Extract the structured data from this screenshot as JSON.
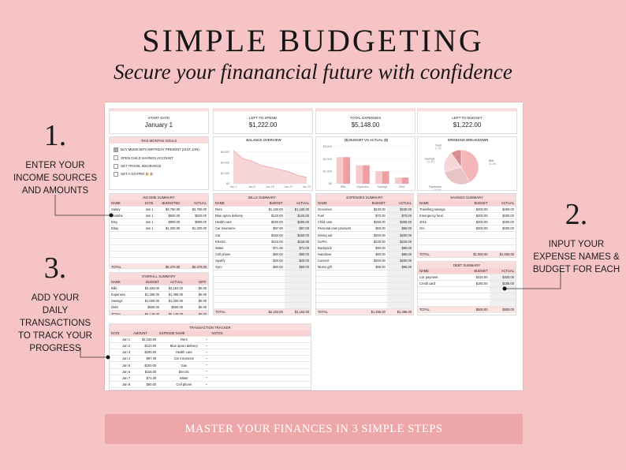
{
  "header": {
    "title": "SIMPLE BUDGETING",
    "subtitle": "Secure your finanancial future with confidence"
  },
  "steps": [
    {
      "number": "1.",
      "lines": [
        "ENTER YOUR",
        "INCOME SOURCES",
        "AND AMOUNTS"
      ]
    },
    {
      "number": "2.",
      "lines": [
        "INPUT YOUR",
        "EXPENSE NAMES &",
        "BUDGET FOR EACH"
      ]
    },
    {
      "number": "3.",
      "lines": [
        "ADD YOUR",
        "DAILY",
        "TRANSACTIONS",
        "TO TRACK YOUR",
        "PROGRESS"
      ]
    }
  ],
  "footer": "MASTER YOUR FINANCES IN 3 SIMPLE STEPS",
  "spreadsheet": {
    "cards": [
      {
        "label": "START DATE",
        "value": "January 1"
      },
      {
        "label": "LEFT TO SPEND",
        "value": "$1,222.00"
      },
      {
        "label": "TOTAL EXPENSES",
        "value": "$5,148.00"
      },
      {
        "label": "LEFT TO BUDGET",
        "value": "$1,222.00"
      }
    ],
    "goals": {
      "title": "THIS MONTHS GOALS",
      "items": [
        {
          "text": "BUY MUMS 60TH BIRTHDAY PRESENT (21ST JAN)",
          "checked": true
        },
        {
          "text": "OPEN CHILD SAVINGS ACCOUNT",
          "checked": false
        },
        {
          "text": "GET TRAVEL INSURANCE",
          "checked": false
        },
        {
          "text": "GET A GO-PRO 🎉🎉",
          "checked": false
        }
      ]
    },
    "balance_overview": {
      "type": "line",
      "title": "BALANCE OVERVIEW",
      "color": "#eea3a6",
      "categories": [
        "Jan 1",
        null,
        "Jan 8",
        null,
        "Jan 15",
        null,
        "Jan 22",
        null,
        "Jan 29"
      ],
      "values": [
        6300,
        4800,
        4300,
        3500,
        3100,
        2700,
        2300,
        1600,
        1222
      ],
      "ylim": [
        0,
        7000
      ],
      "yticks": [
        {
          "value": 0,
          "label": "$0"
        },
        {
          "value": 2000,
          "label": "$2,000"
        },
        {
          "value": 4000,
          "label": "$4,000"
        },
        {
          "value": 6000,
          "label": "$6,000"
        }
      ]
    },
    "budget_vs_actual": {
      "type": "bar",
      "title": "($) BUDGET VS ACTUAL ($)",
      "categories": [
        "Bills",
        "Expenses",
        "Savings",
        "Debt"
      ],
      "series": [
        {
          "color": "#f6c9cb",
          "values": [
            2153,
            1495,
            1000,
            500
          ]
        },
        {
          "color": "#ee9fa3",
          "values": [
            2153,
            1495,
            1000,
            500
          ]
        }
      ],
      "ylim": [
        0,
        3000
      ],
      "yticks": [
        {
          "value": 0,
          "label": "$0"
        },
        {
          "value": 1000,
          "label": "$1,000"
        },
        {
          "value": 2000,
          "label": "$2,000"
        },
        {
          "value": 3000,
          "label": "$3,000"
        }
      ]
    },
    "spending_breakdown": {
      "type": "pie",
      "title": "SPENDING BREAKDOWN",
      "categories": [
        "Bills",
        "Expenses",
        "Savings",
        "Debt"
      ],
      "values": [
        41.8,
        29.0,
        19.4,
        9.7
      ],
      "value_labels": [
        "41.8%",
        "29.0%",
        "19.4%",
        "9.7%"
      ],
      "colors": [
        "#f3b6b9",
        "#e9c4c6",
        "#f7d6d7",
        "#d98d92"
      ]
    },
    "income_summary": {
      "title": "INCOME SUMMARY",
      "columns": [
        "NAME",
        "DATE",
        "BUDGETED",
        "ACTUAL"
      ],
      "rows": [
        [
          "Salary",
          "Jan 1",
          "$3,750.00",
          "$3,750.00"
        ],
        [
          "Youtube",
          "Jan 1",
          "$620.00",
          "$620.00"
        ],
        [
          "Etsy",
          "Jan 1",
          "$800.00",
          "$800.00"
        ],
        [
          "Ebay",
          "Jan 1",
          "$1,200.00",
          "$1,200.00"
        ]
      ],
      "total": {
        "label": "TOTAL",
        "values": [
          "$6,370.00",
          "$6,370.00"
        ]
      }
    },
    "overall_summary": {
      "title": "OVERALL SUMMARY",
      "columns": [
        "NAME",
        "BUDGET",
        "ACTUAL",
        "DIFF."
      ],
      "rows": [
        [
          "Bills",
          "$2,153.00",
          "$2,153.00",
          "$0.00"
        ],
        [
          "Expenses",
          "$1,495.00",
          "$1,495.00",
          "$0.00"
        ],
        [
          "Savings",
          "$1,000.00",
          "$1,000.00",
          "$0.00"
        ],
        [
          "Debt",
          "$500.00",
          "$500.00",
          "$0.00"
        ]
      ],
      "total": {
        "label": "TOTAL",
        "values": [
          "$5,148.00",
          "$5,148.00",
          "$0.00"
        ]
      }
    },
    "bills_summary": {
      "title": "BILLS SUMMARY",
      "columns": [
        "NAME",
        "BUDGET",
        "ACTUAL"
      ],
      "rows": [
        [
          "Rent",
          "$1,150.00",
          "$1,150.00"
        ],
        [
          "Blue apron delivery",
          "$120.00",
          "$120.00"
        ],
        [
          "Health care",
          "$290.00",
          "$290.00"
        ],
        [
          "Car insurance",
          "$97.00",
          "$97.00"
        ],
        [
          "Car",
          "$150.00",
          "$150.00"
        ],
        [
          "Electric",
          "$115.00",
          "$115.00"
        ],
        [
          "Water",
          "$71.00",
          "$71.00"
        ],
        [
          "Cell phone",
          "$80.00",
          "$80.00"
        ],
        [
          "Spotify",
          "$20.00",
          "$20.00"
        ],
        [
          "Gym",
          "$60.00",
          "$60.00"
        ]
      ],
      "total": {
        "label": "TOTAL",
        "values": [
          "$2,153.00",
          "$2,153.00"
        ]
      }
    },
    "expenses_summary": {
      "title": "EXPENSES SUMMARY",
      "columns": [
        "NAME",
        "BUDGET",
        "ACTUAL"
      ],
      "rows": [
        [
          "Groceries",
          "$240.00",
          "$240.00"
        ],
        [
          "Fuel",
          "$70.00",
          "$70.00"
        ],
        [
          "Child care",
          "$250.00",
          "$250.00"
        ],
        [
          "Personal care products",
          "$60.00",
          "$60.00"
        ],
        [
          "Dining out",
          "$200.00",
          "$200.00"
        ],
        [
          "GoPro",
          "$220.00",
          "$220.00"
        ],
        [
          "Backpack",
          "$90.00",
          "$90.00"
        ],
        [
          "Hairdriver",
          "$80.00",
          "$80.00"
        ],
        [
          "Concert",
          "$200.00",
          "$200.00"
        ],
        [
          "Mums gift",
          "$85.00",
          "$85.00"
        ]
      ],
      "total": {
        "label": "TOTAL",
        "values": [
          "$1,495.00",
          "$1,495.00"
        ]
      }
    },
    "savings_summary": {
      "title": "SAVINGS SUMMARY",
      "columns": [
        "NAME",
        "BUDGET",
        "ACTUAL"
      ],
      "rows": [
        [
          "Travelling savings",
          "$400.00",
          "$400.00"
        ],
        [
          "Emergency fund",
          "$200.00",
          "$200.00"
        ],
        [
          "401k",
          "$200.00",
          "$200.00"
        ],
        [
          "ISA",
          "$200.00",
          "$200.00"
        ]
      ],
      "total": {
        "label": "TOTAL",
        "values": [
          "$1,000.00",
          "$1,000.00"
        ]
      }
    },
    "debt_summary": {
      "title": "DEBT SUMMARY",
      "columns": [
        "NAME",
        "BUDGET",
        "ACTUAL"
      ],
      "rows": [
        [
          "Car payment",
          "$320.00",
          "$320.00"
        ],
        [
          "Credit card",
          "$180.00",
          "$180.00"
        ]
      ],
      "total": {
        "label": "TOTAL",
        "values": [
          "$500.00",
          "$500.00"
        ]
      }
    },
    "transaction_tracker": {
      "title": "TRANSACTION TRACKER",
      "columns": [
        "DATE",
        "AMOUNT",
        "EXPENSE NAME",
        "NOTES"
      ],
      "rows": [
        [
          "Jan 1",
          "$1,150.00",
          "Rent"
        ],
        [
          "Jan 2",
          "$120.00",
          "Blue apron delivery"
        ],
        [
          "Jan 3",
          "$290.00",
          "Health care"
        ],
        [
          "Jan 4",
          "$97.00",
          "Car insurance"
        ],
        [
          "Jan 5",
          "$150.00",
          "Gas"
        ],
        [
          "Jan 6",
          "$115.00",
          "Electric"
        ],
        [
          "Jan 7",
          "$71.00",
          "Water"
        ],
        [
          "Jan 8",
          "$80.00",
          "Cell phone"
        ]
      ]
    }
  }
}
